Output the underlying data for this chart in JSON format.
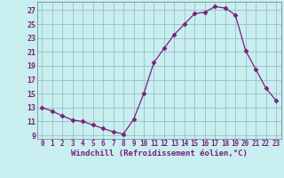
{
  "x": [
    0,
    1,
    2,
    3,
    4,
    5,
    6,
    7,
    8,
    9,
    10,
    11,
    12,
    13,
    14,
    15,
    16,
    17,
    18,
    19,
    20,
    21,
    22,
    23
  ],
  "y": [
    13,
    12.5,
    11.8,
    11.2,
    11.0,
    10.5,
    10.0,
    9.5,
    9.2,
    11.3,
    15.0,
    19.5,
    21.5,
    23.5,
    25.0,
    26.5,
    26.7,
    27.5,
    27.3,
    26.3,
    21.2,
    18.5,
    15.8,
    14.0
  ],
  "line_color": "#7B1F7A",
  "marker": "D",
  "marker_size": 2.5,
  "bg_color": "#C8EEF0",
  "grid_color": "#9BBFC8",
  "ylabel_ticks": [
    9,
    11,
    13,
    15,
    17,
    19,
    21,
    23,
    25,
    27
  ],
  "xlabel": "Windchill (Refroidissement éolien,°C)",
  "ylim": [
    8.5,
    28.2
  ],
  "xlim": [
    -0.5,
    23.5
  ],
  "tick_color": "#7B1F7A",
  "label_color": "#7B1F7A",
  "font_size": 6.5
}
